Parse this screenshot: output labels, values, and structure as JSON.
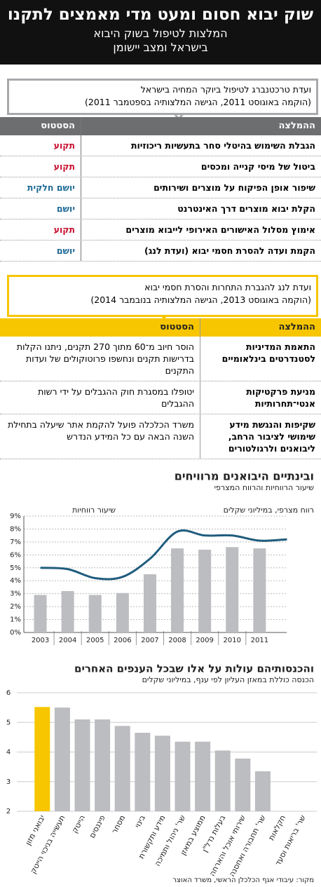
{
  "header": {
    "title": "שוק יבוא חסום ומעט מדי מאמצים לתקנו",
    "subtitle_lines": [
      "המלצות לטיפול בשוק היבוא",
      "בישראל ומצב יישומן"
    ]
  },
  "committee_1": {
    "name": "ועדת טרכטנברג לטיפול ביוקר המחיה בישראל",
    "dates": "(הוקמה באוגוסט 2011, הגישה המלצותיה בספטמבר 2011)",
    "columns": [
      "ההמלצה",
      "הסטטוס"
    ],
    "rows": [
      {
        "recommendation": "הגבלת השימוש בהיטלי סחר בתעשיות ריכוזיות",
        "status": "תקוע",
        "status_color": "#c8102e"
      },
      {
        "recommendation": "ביטול של מיסי קנייה ומכסים",
        "status": "תקוע",
        "status_color": "#c8102e"
      },
      {
        "recommendation": "שיפור אופן הפיקוח על מוצרים ושירותים",
        "status": "יושם חלקית",
        "status_color": "#1f6a96"
      },
      {
        "recommendation": "הקלת יבוא מוצרים דרך האינטרנט",
        "status": "יושם",
        "status_color": "#1f6a96"
      },
      {
        "recommendation": "אימוץ מסלול האישורים האירופי לייבוא מוצרים",
        "status": "תקוע",
        "status_color": "#c8102e"
      },
      {
        "recommendation": "הקמת ועדה להסרת חסמי יבוא (ועדת לנג)",
        "status": "יושם",
        "status_color": "#1f6a96"
      }
    ]
  },
  "committee_2": {
    "name": "ועדת לנג להגברת התחרות והסרת חסמי יבוא",
    "dates": "(הוקמה באוגוסט 2013, הגישה המלצותיה בנובמבר 2014)",
    "columns": [
      "ההמלצה",
      "הסטטוס"
    ],
    "rows": [
      {
        "recommendation": "התאמת המדיניות לסטנדרטים בינלאומיים",
        "status": "הוסר חיוב מ־60 מתוך 270 תקנים, ניתנו הקלות בדרישות תקנים ונחשפו פרוטוקולים של ועדות התקנים"
      },
      {
        "recommendation": "מניעת פרקטיקות אנטי־תחרותיות",
        "status": "יטופלו במסגרת חוק ההגבלים על ידי רשות ההגבלים"
      },
      {
        "recommendation": "שקיפות והנגשת מידע שימושי לציבור הרחב, ליבואנים ולרגולטורים",
        "status": "משרד הכלכלה פועל להקמת אתר שיעלה בתחילת השנה הבאה עם כל המידע הנדרש"
      }
    ]
  },
  "chart_data": [
    {
      "type": "combo",
      "title": "ובינתיים היבואנים מרוויחים",
      "subtitle": "שיעור הרווחיות והרווח המצרפי",
      "categories": [
        "2003",
        "2004",
        "2005",
        "2006",
        "2007",
        "2008",
        "2009",
        "2010",
        "2011",
        null
      ],
      "series": [
        {
          "name": "רווח מצרפי, במיליוני שקלים",
          "type": "bar",
          "color": "#bcbdc0",
          "values": [
            2.9,
            3.2,
            2.9,
            3.05,
            4.5,
            6.5,
            6.4,
            6.6,
            6.5,
            null
          ]
        },
        {
          "name": "שיעור רווחיות",
          "type": "line",
          "color": "#1f5c7e",
          "values": [
            5.0,
            4.9,
            4.2,
            4.3,
            5.7,
            7.8,
            7.5,
            7.5,
            7.1,
            7.2
          ]
        }
      ],
      "ylim": [
        0,
        9
      ],
      "yticks": [
        {
          "value": 0,
          "label": "0%"
        },
        {
          "value": 1,
          "label": "1%"
        },
        {
          "value": 2,
          "label": "2%"
        },
        {
          "value": 3,
          "label": "3%"
        },
        {
          "value": 4,
          "label": "4%"
        },
        {
          "value": 5,
          "label": "5%"
        },
        {
          "value": 6,
          "label": "6%"
        },
        {
          "value": 7,
          "label": "7%"
        },
        {
          "value": 8,
          "label": "8%"
        },
        {
          "value": 9,
          "label": "9%"
        }
      ],
      "grid": true
    },
    {
      "type": "bar",
      "title": "והכנסותיהם עולות על אלו שבכל הענפים האחרים",
      "subtitle": "הכנסה כוללת במאזן העליון לפי ענף, במיליוני שקלים",
      "categories": [
        "יבואני מזון",
        "תעשייה בניכוי הייטק",
        "הייטק",
        "פיננסים",
        "מסחר",
        "בינוי",
        "מידע ותקשורת",
        "שר' ניהול ותמיכה",
        "ממוצע במאזן",
        "בעלות נדל\"ן",
        "שירותי אוכל והארחה",
        "שר' תחבורה ואחסנה",
        "חקלאות",
        "שר' בריאות וסעד"
      ],
      "values": [
        5.52,
        5.5,
        5.1,
        5.1,
        4.88,
        4.65,
        4.55,
        4.35,
        4.35,
        4.05,
        3.78,
        3.35,
        null,
        null
      ],
      "colors": [
        "#f7c600",
        "#bcbdc0",
        "#bcbdc0",
        "#bcbdc0",
        "#bcbdc0",
        "#bcbdc0",
        "#bcbdc0",
        "#bcbdc0",
        "#bcbdc0",
        "#bcbdc0",
        "#bcbdc0",
        "#bcbdc0",
        "#bcbdc0",
        "#bcbdc0"
      ],
      "ylim": [
        2,
        6
      ],
      "yticks": [
        2,
        3,
        4,
        5,
        6
      ],
      "grid": true
    }
  ],
  "source": "מקור: עיבודי אגף הכלכלן הראשי, משרד האוצר"
}
